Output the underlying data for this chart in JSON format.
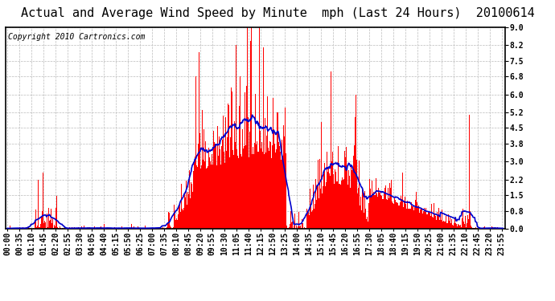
{
  "title": "Actual and Average Wind Speed by Minute  mph (Last 24 Hours)  20100614",
  "copyright": "Copyright 2010 Cartronics.com",
  "yticks": [
    0.0,
    0.8,
    1.5,
    2.2,
    3.0,
    3.8,
    4.5,
    5.2,
    6.0,
    6.8,
    7.5,
    8.2,
    9.0
  ],
  "ylim": [
    0.0,
    9.0
  ],
  "bar_color": "#ff0000",
  "line_color": "#0000cc",
  "background_color": "#ffffff",
  "grid_color": "#bbbbbb",
  "title_fontsize": 11,
  "copyright_fontsize": 7,
  "tick_fontsize": 7,
  "xtick_step_min": 35
}
